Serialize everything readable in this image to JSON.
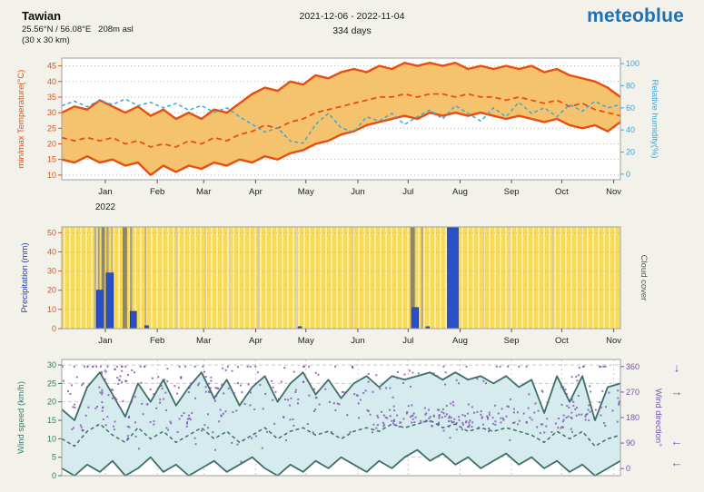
{
  "header": {
    "location_name": "Tawian",
    "coordinates": "25.56°N / 56.08°E   208m asl",
    "area": "(30 x 30 km)",
    "date_range": "2021-12-06 - 2022-11-04",
    "days": "334 days",
    "logo_text": "meteoblue"
  },
  "colors": {
    "logo_blue": "#1c70b8",
    "temperature": "#e84e0f",
    "temperature_band": "#f5c26d",
    "humidity": "#41a6d6",
    "precipitation_bar": "#2a50c8",
    "precipitation_axis": "#d4552a",
    "precipitation_label": "#2038c8",
    "cloud_background": "#f8da55",
    "cloud_background_stripe": "#fcec9b",
    "cloud_label": "#555555",
    "wind": "#3f6f68",
    "wind_band": "#d6ebee",
    "wind_axis": "#2e7d6e",
    "wind_direction": "#7a52ad",
    "grid": "#b9b2a6",
    "border": "#a0a0a0",
    "month_label": "#222222"
  },
  "months_axis": {
    "year_label": "2022",
    "ticks": [
      {
        "label": "Jan",
        "f": 0.078
      },
      {
        "label": "Feb",
        "f": 0.171
      },
      {
        "label": "Mar",
        "f": 0.254
      },
      {
        "label": "Apr",
        "f": 0.347
      },
      {
        "label": "May",
        "f": 0.437
      },
      {
        "label": "Jun",
        "f": 0.53
      },
      {
        "label": "Jul",
        "f": 0.62
      },
      {
        "label": "Aug",
        "f": 0.713
      },
      {
        "label": "Sep",
        "f": 0.805
      },
      {
        "label": "Oct",
        "f": 0.895
      },
      {
        "label": "Nov",
        "f": 0.988
      }
    ]
  },
  "chart_data": [
    {
      "id": "temperature_humidity",
      "type": "line",
      "title": "min/max temperature band with mean temperature and relative humidity",
      "axes": {
        "left": {
          "label": "min/max Temperature(°C)",
          "ticks": [
            10,
            15,
            20,
            25,
            30,
            35,
            40,
            45
          ],
          "range": [
            8.5,
            47.5
          ]
        },
        "right": {
          "label": "Relative humidity(%)",
          "ticks": [
            0,
            20,
            40,
            60,
            80,
            100
          ],
          "range": [
            -5,
            105
          ]
        }
      },
      "band_between": [
        "max_temperature",
        "min_temperature"
      ],
      "series": [
        {
          "name": "max_temperature",
          "axis": "left",
          "style": "solid",
          "values": [
            30,
            32,
            31,
            34,
            32,
            30,
            32,
            29,
            31,
            28,
            30,
            28,
            31,
            30,
            33,
            36,
            38,
            37,
            40,
            39,
            42,
            41,
            43,
            44,
            43,
            45,
            44,
            46,
            45,
            46,
            45,
            46,
            44,
            45,
            44,
            45,
            44,
            45,
            43,
            44,
            42,
            41,
            40,
            38,
            35
          ]
        },
        {
          "name": "min_temperature",
          "axis": "left",
          "style": "solid",
          "values": [
            15,
            14,
            16,
            14,
            15,
            13,
            14,
            10,
            13,
            11,
            13,
            12,
            14,
            13,
            15,
            14,
            16,
            15,
            17,
            18,
            20,
            21,
            23,
            24,
            26,
            27,
            28,
            29,
            28,
            30,
            29,
            30,
            29,
            30,
            29,
            28,
            29,
            28,
            27,
            28,
            26,
            25,
            26,
            24,
            27
          ]
        },
        {
          "name": "mean_temperature",
          "axis": "left",
          "style": "dashed",
          "values": [
            22,
            21,
            22,
            21,
            22,
            20,
            21,
            19,
            20,
            19,
            21,
            20,
            22,
            21,
            23,
            24,
            26,
            25,
            27,
            28,
            30,
            31,
            32,
            33,
            34,
            35,
            35,
            36,
            35,
            36,
            36,
            35,
            36,
            35,
            35,
            34,
            35,
            34,
            33,
            34,
            32,
            33,
            31,
            30,
            29
          ]
        },
        {
          "name": "relative_humidity",
          "axis": "right",
          "style": "dashed",
          "values": [
            62,
            66,
            61,
            67,
            63,
            68,
            62,
            65,
            60,
            64,
            58,
            62,
            56,
            60,
            52,
            45,
            38,
            42,
            30,
            28,
            45,
            55,
            42,
            38,
            52,
            48,
            55,
            45,
            52,
            58,
            50,
            62,
            55,
            48,
            60,
            52,
            65,
            55,
            60,
            52,
            63,
            57,
            66,
            60,
            63
          ]
        }
      ]
    },
    {
      "id": "precipitation_cloud",
      "type": "bar",
      "title": "daily precipitation with cloud cover background",
      "axes": {
        "left": {
          "label": "Precipitation (mm)",
          "ticks": [
            0,
            10,
            20,
            30,
            40,
            50
          ],
          "range": [
            0,
            53
          ]
        },
        "right": {
          "label": "Cloud cover"
        }
      },
      "bars": [
        {
          "f": 0.068,
          "value": 20,
          "w": 7
        },
        {
          "f": 0.086,
          "value": 29,
          "w": 8
        },
        {
          "f": 0.128,
          "value": 9,
          "w": 7
        },
        {
          "f": 0.152,
          "value": 1.5,
          "w": 4
        },
        {
          "f": 0.426,
          "value": 1,
          "w": 4
        },
        {
          "f": 0.633,
          "value": 11,
          "w": 7
        },
        {
          "f": 0.655,
          "value": 1,
          "w": 4
        },
        {
          "f": 0.7,
          "value": 53,
          "w": 12
        }
      ],
      "cloud_stripes": [
        {
          "f": 0.06,
          "w": 0.004,
          "color": "#b6ae98"
        },
        {
          "f": 0.066,
          "w": 0.003,
          "color": "#9d947c"
        },
        {
          "f": 0.074,
          "w": 0.006,
          "color": "#8f8670"
        },
        {
          "f": 0.082,
          "w": 0.004,
          "color": "#a99f86"
        },
        {
          "f": 0.09,
          "w": 0.003,
          "color": "#b6ae98"
        },
        {
          "f": 0.113,
          "w": 0.008,
          "color": "#8f8670"
        },
        {
          "f": 0.124,
          "w": 0.004,
          "color": "#a99f86"
        },
        {
          "f": 0.15,
          "w": 0.003,
          "color": "#b6ae98"
        },
        {
          "f": 0.205,
          "w": 0.002,
          "color": "#cfc8b2"
        },
        {
          "f": 0.257,
          "w": 0.002,
          "color": "#cfc8b2"
        },
        {
          "f": 0.3,
          "w": 0.002,
          "color": "#d8d2bd"
        },
        {
          "f": 0.352,
          "w": 0.003,
          "color": "#cfc8b2"
        },
        {
          "f": 0.42,
          "w": 0.002,
          "color": "#d8d2bd"
        },
        {
          "f": 0.52,
          "w": 0.003,
          "color": "#cfc8b2"
        },
        {
          "f": 0.628,
          "w": 0.008,
          "color": "#8f8670"
        },
        {
          "f": 0.645,
          "w": 0.003,
          "color": "#a99f86"
        },
        {
          "f": 0.7,
          "w": 0.006,
          "color": "#8f8670"
        },
        {
          "f": 0.755,
          "w": 0.002,
          "color": "#d8d2bd"
        },
        {
          "f": 0.8,
          "w": 0.002,
          "color": "#d8d2bd"
        },
        {
          "f": 0.88,
          "w": 0.003,
          "color": "#cfc8b2"
        },
        {
          "f": 0.93,
          "w": 0.002,
          "color": "#d8d2bd"
        }
      ]
    },
    {
      "id": "wind",
      "type": "line_scatter",
      "title": "min/max wind speed band with mean wind speed and wind direction scatter",
      "axes": {
        "left": {
          "label": "Wind speed (km/h)",
          "ticks": [
            0,
            5,
            10,
            15,
            20,
            25,
            30
          ],
          "range": [
            0,
            31.5
          ]
        },
        "right": {
          "label": "Wind direction°",
          "ticks": [
            0,
            90,
            180,
            270,
            360
          ],
          "range": [
            -25,
            385
          ]
        }
      },
      "band_between": [
        "max_wind_speed",
        "min_wind_speed"
      ],
      "series": [
        {
          "name": "max_wind_speed",
          "axis": "left",
          "style": "solid",
          "values": [
            18,
            15,
            24,
            28,
            22,
            16,
            25,
            20,
            26,
            19,
            24,
            28,
            21,
            26,
            19,
            24,
            27,
            20,
            25,
            28,
            22,
            26,
            21,
            25,
            27,
            24,
            27,
            26,
            27,
            28,
            26,
            28,
            26,
            27,
            25,
            27,
            24,
            26,
            17,
            27,
            20,
            27,
            15,
            24,
            25
          ]
        },
        {
          "name": "min_wind_speed",
          "axis": "left",
          "style": "solid",
          "values": [
            2,
            0,
            3,
            1,
            4,
            0,
            2,
            5,
            1,
            3,
            0,
            2,
            4,
            1,
            3,
            5,
            2,
            0,
            3,
            1,
            4,
            2,
            5,
            3,
            1,
            4,
            2,
            5,
            7,
            4,
            6,
            3,
            5,
            2,
            4,
            6,
            3,
            5,
            2,
            4,
            1,
            3,
            0,
            2,
            4
          ]
        },
        {
          "name": "mean_wind_speed",
          "axis": "left",
          "style": "dashed",
          "values": [
            10,
            8,
            12,
            14,
            11,
            9,
            13,
            10,
            12,
            9,
            11,
            13,
            10,
            12,
            9,
            11,
            13,
            10,
            12,
            13,
            11,
            12,
            10,
            12,
            13,
            12,
            14,
            13,
            14,
            15,
            13,
            14,
            12,
            13,
            12,
            13,
            12,
            11,
            9,
            12,
            10,
            12,
            8,
            10,
            11
          ]
        }
      ],
      "scatter": {
        "name": "wind_direction",
        "seed": 7,
        "clusters": [
          {
            "f0": 0.0,
            "f1": 0.13,
            "mean": 300,
            "spread": 55,
            "count": 60
          },
          {
            "f0": 0.0,
            "f1": 0.13,
            "mean": 170,
            "spread": 40,
            "count": 25
          },
          {
            "f0": 0.13,
            "f1": 0.32,
            "mean": 290,
            "spread": 60,
            "count": 75
          },
          {
            "f0": 0.13,
            "f1": 0.32,
            "mean": 160,
            "spread": 45,
            "count": 35
          },
          {
            "f0": 0.32,
            "f1": 0.56,
            "mean": 250,
            "spread": 90,
            "count": 90
          },
          {
            "f0": 0.56,
            "f1": 0.78,
            "mean": 180,
            "spread": 22,
            "count": 120
          },
          {
            "f0": 0.56,
            "f1": 0.78,
            "mean": 320,
            "spread": 45,
            "count": 25
          },
          {
            "f0": 0.78,
            "f1": 1.0,
            "mean": 185,
            "spread": 30,
            "count": 80
          },
          {
            "f0": 0.78,
            "f1": 1.0,
            "mean": 280,
            "spread": 70,
            "count": 35
          }
        ]
      },
      "direction_arrows": [
        {
          "deg": 355,
          "glyph": "↓"
        },
        {
          "deg": 270,
          "glyph": "→"
        },
        {
          "deg": 95,
          "glyph": "←"
        },
        {
          "deg": 20,
          "glyph": "←"
        }
      ]
    }
  ]
}
